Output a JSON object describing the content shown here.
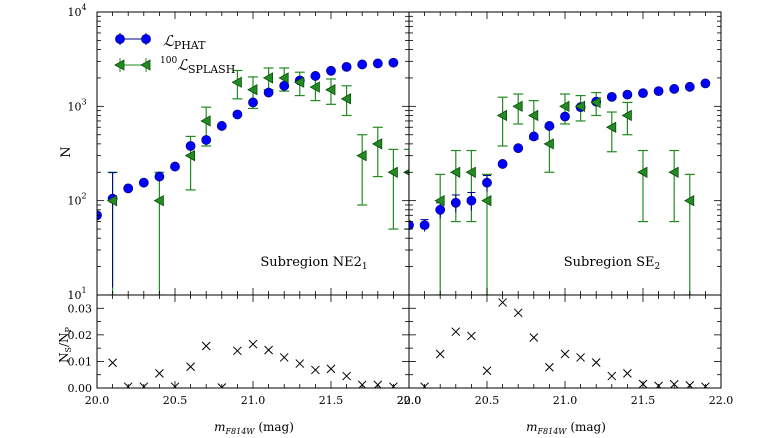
{
  "chart_data": [
    {
      "type": "scatter",
      "panel": "upper-left",
      "annotation": {
        "text": "Subregion NE2",
        "sub": "1"
      },
      "ylabel": "N",
      "yscale": "log",
      "xlim": [
        20.0,
        22.0
      ],
      "ylim": [
        10,
        10000
      ],
      "grid": false,
      "legend_position": "top-left",
      "series": [
        {
          "name": "PHAT",
          "marker": "circle",
          "x": [
            20.0,
            20.1,
            20.2,
            20.3,
            20.4,
            20.5,
            20.6,
            20.7,
            20.8,
            20.9,
            21.0,
            21.1,
            21.2,
            21.3,
            21.4,
            21.5,
            21.6,
            21.7,
            21.8,
            21.9
          ],
          "y": [
            70,
            105,
            135,
            155,
            180,
            230,
            380,
            440,
            620,
            820,
            1100,
            1400,
            1650,
            1880,
            2100,
            2380,
            2620,
            2780,
            2850,
            2900
          ],
          "err": [
            null,
            93,
            null,
            null,
            null,
            null,
            null,
            null,
            null,
            null,
            null,
            null,
            null,
            null,
            null,
            null,
            null,
            null,
            null,
            null
          ]
        },
        {
          "name": "100 SPLASH",
          "marker": "triangle-left",
          "x": [
            20.1,
            20.4,
            20.6,
            20.7,
            20.9,
            21.0,
            21.1,
            21.2,
            21.3,
            21.4,
            21.5,
            21.6,
            21.7,
            21.8,
            21.9,
            22.0
          ],
          "y": [
            100,
            100,
            300,
            700,
            1800,
            1500,
            2000,
            2000,
            1800,
            1600,
            1500,
            1200,
            300,
            400,
            200,
            200
          ],
          "lo": [
            10,
            10,
            130,
            380,
            1200,
            950,
            1500,
            1450,
            1300,
            1150,
            1050,
            800,
            90,
            180,
            50,
            50
          ],
          "hi": [
            200,
            200,
            480,
            980,
            2400,
            2050,
            2550,
            2550,
            2300,
            2050,
            1950,
            1650,
            500,
            600,
            350,
            350
          ]
        }
      ]
    },
    {
      "type": "scatter",
      "panel": "upper-right",
      "annotation": {
        "text": "Subregion SE",
        "sub": "2"
      },
      "yscale": "log",
      "xlim": [
        20.0,
        22.0
      ],
      "ylim": [
        10,
        10000
      ],
      "series": [
        {
          "name": "PHAT",
          "marker": "circle",
          "x": [
            20.0,
            20.1,
            20.2,
            20.3,
            20.4,
            20.5,
            20.6,
            20.7,
            20.8,
            20.9,
            21.0,
            21.1,
            21.2,
            21.3,
            21.4,
            21.5,
            21.6,
            21.7,
            21.8,
            21.9
          ],
          "y": [
            55,
            55,
            80,
            95,
            100,
            155,
            245,
            360,
            480,
            620,
            780,
            980,
            1120,
            1260,
            1330,
            1380,
            1450,
            1530,
            1610,
            1750
          ],
          "err": [
            null,
            8,
            15,
            20,
            22,
            30,
            null,
            null,
            null,
            null,
            null,
            null,
            null,
            null,
            null,
            null,
            null,
            null,
            null,
            null
          ]
        },
        {
          "name": "100 SPLASH",
          "marker": "triangle-left",
          "x": [
            20.2,
            20.3,
            20.4,
            20.5,
            20.6,
            20.7,
            20.8,
            20.9,
            21.0,
            21.1,
            21.2,
            21.3,
            21.4,
            21.5,
            21.7,
            21.8
          ],
          "y": [
            100,
            200,
            200,
            100,
            800,
            1000,
            800,
            400,
            1000,
            1000,
            1100,
            600,
            800,
            200,
            200,
            100
          ],
          "lo": [
            10,
            60,
            60,
            10,
            380,
            650,
            450,
            200,
            650,
            700,
            800,
            330,
            500,
            60,
            60,
            10
          ],
          "hi": [
            190,
            340,
            340,
            190,
            1250,
            1350,
            1150,
            600,
            1350,
            1300,
            1400,
            870,
            1100,
            340,
            340,
            190
          ]
        }
      ]
    },
    {
      "type": "scatter",
      "panel": "lower-left",
      "ylabel": "N",
      "ylabel_sub": "S",
      "ylabel_sep": "/N",
      "ylabel_sub2": "P",
      "xlabel": "m",
      "xlabel_sub": "F814W",
      "xlabel_unit": " (mag)",
      "xlim": [
        20.0,
        22.0
      ],
      "ylim": [
        0.0,
        0.035
      ],
      "marker": "x",
      "x": [
        20.1,
        20.2,
        20.3,
        20.4,
        20.5,
        20.6,
        20.7,
        20.8,
        20.9,
        21.0,
        21.1,
        21.2,
        21.3,
        21.4,
        21.5,
        21.6,
        21.7,
        21.8,
        21.9
      ],
      "y": [
        0.0095,
        0.0005,
        0.0005,
        0.0055,
        0.0005,
        0.008,
        0.0158,
        0.0002,
        0.014,
        0.0165,
        0.0143,
        0.0115,
        0.0092,
        0.0068,
        0.0072,
        0.0045,
        0.0012,
        0.0012,
        0.0005
      ]
    },
    {
      "type": "scatter",
      "panel": "lower-right",
      "xlabel": "m",
      "xlabel_sub": "F814W",
      "xlabel_unit": " (mag)",
      "xlim": [
        20.0,
        22.0
      ],
      "ylim": [
        0.0,
        0.035
      ],
      "marker": "x",
      "x": [
        20.1,
        20.2,
        20.3,
        20.4,
        20.5,
        20.6,
        20.7,
        20.8,
        20.9,
        21.0,
        21.1,
        21.2,
        21.3,
        21.4,
        21.5,
        21.6,
        21.7,
        21.8,
        21.9
      ],
      "y": [
        0.0005,
        0.0128,
        0.0212,
        0.0196,
        0.0065,
        0.0322,
        0.0283,
        0.019,
        0.0078,
        0.0128,
        0.0115,
        0.0096,
        0.0045,
        0.0055,
        0.0015,
        0.0008,
        0.0014,
        0.001,
        0.0005
      ]
    }
  ],
  "axes": {
    "x_ticks": [
      "20.0",
      "20.5",
      "21.0",
      "21.5",
      "22.0"
    ],
    "x_ticks_right": [
      "20.0",
      "20.5",
      "21.0",
      "21.5",
      "22.0"
    ],
    "y_ticks_log": [
      {
        "base": "10",
        "exp": "1"
      },
      {
        "base": "10",
        "exp": "2"
      },
      {
        "base": "10",
        "exp": "3"
      },
      {
        "base": "10",
        "exp": "4"
      }
    ],
    "y_ticks_ratio": [
      "0.00",
      "0.01",
      "0.02",
      "0.03"
    ]
  },
  "legend": {
    "phat_label": "ℒ",
    "phat_sub": "PHAT",
    "splash_sup": "100",
    "splash_label": "ℒ",
    "splash_sub": "SPLASH"
  },
  "colors": {
    "phat": "#0000ff",
    "phat_edge": "#00008b",
    "splash": "#228b22",
    "splash_edge": "#0a4a0a"
  }
}
